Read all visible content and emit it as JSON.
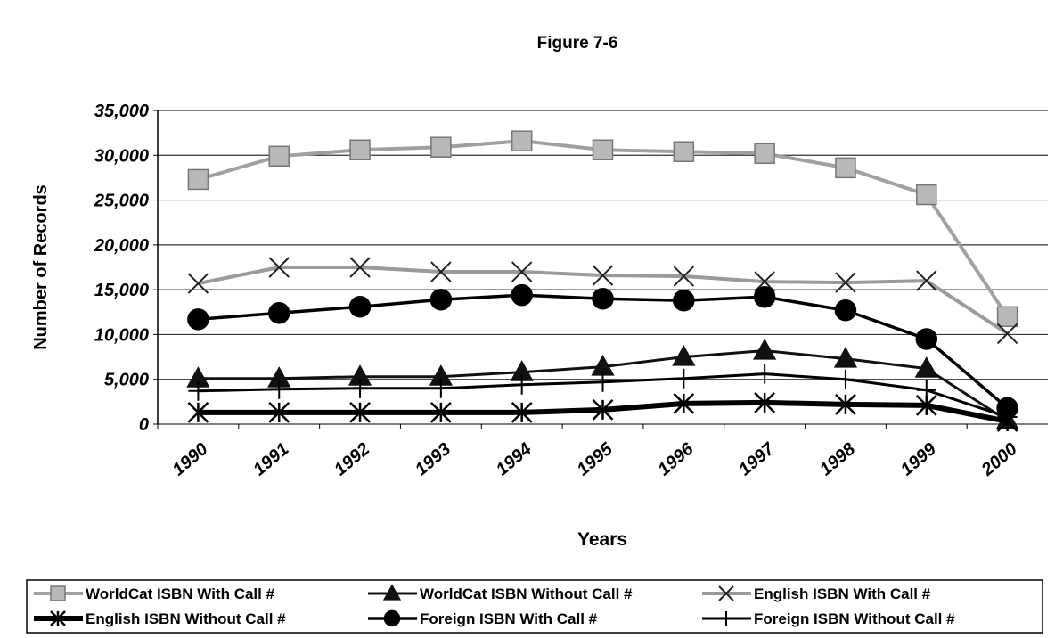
{
  "chart_data": {
    "type": "line",
    "title": "Figure 7-6",
    "x_label": "Years",
    "y_label": "Number of Records",
    "categories": [
      "1990",
      "1991",
      "1992",
      "1993",
      "1994",
      "1995",
      "1996",
      "1997",
      "1998",
      "1999",
      "2000"
    ],
    "ylim": [
      0,
      35000
    ],
    "yticks": [
      0,
      {
        "value": 5000,
        "label": "5,000"
      },
      {
        "value": 10000,
        "label": "10,000"
      },
      {
        "value": 15000,
        "label": "15,000"
      },
      {
        "value": 20000,
        "label": "20,000"
      },
      {
        "value": 25000,
        "label": "25,000"
      },
      {
        "value": 30000,
        "label": "30,000"
      },
      {
        "value": 35000,
        "label": "35,000"
      }
    ],
    "grid": true,
    "legend": "bottom",
    "series": [
      {
        "name": "WorldCat ISBN With Call #",
        "color": "#a0a0a0",
        "marker": "square",
        "values": [
          27300,
          29900,
          30600,
          30900,
          31600,
          30600,
          30400,
          30200,
          28600,
          25600,
          12000
        ]
      },
      {
        "name": "WorldCat ISBN Without Call #",
        "color": "#111111",
        "marker": "triangle",
        "values": [
          5100,
          5100,
          5300,
          5300,
          5800,
          6400,
          7500,
          8200,
          7300,
          6200,
          400
        ]
      },
      {
        "name": "English ISBN With Call #",
        "color": "#9a9a9a",
        "marker": "x",
        "values": [
          15700,
          17500,
          17500,
          17000,
          17000,
          16600,
          16500,
          15900,
          15800,
          16000,
          10100
        ]
      },
      {
        "name": "English ISBN Without Call #",
        "color": "#000000",
        "marker": "asterisk",
        "values": [
          1300,
          1300,
          1300,
          1300,
          1300,
          1600,
          2300,
          2400,
          2200,
          2100,
          300
        ]
      },
      {
        "name": "Foreign ISBN With Call #",
        "color": "#000000",
        "marker": "circle",
        "values": [
          11700,
          12400,
          13100,
          13900,
          14400,
          14000,
          13800,
          14200,
          12700,
          9500,
          1800
        ]
      },
      {
        "name": "Foreign ISBN Without Call #",
        "color": "#000000",
        "marker": "plus",
        "values": [
          3700,
          3900,
          4000,
          4000,
          4400,
          4700,
          5100,
          5600,
          5000,
          3800,
          800
        ]
      }
    ]
  }
}
